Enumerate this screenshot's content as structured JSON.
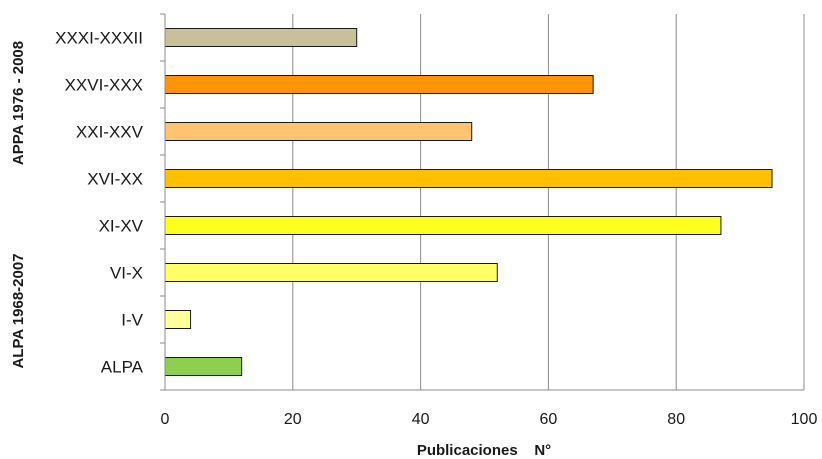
{
  "chart_data": {
    "type": "bar",
    "orientation": "horizontal",
    "categories": [
      "XXXI-XXXII",
      "XXVI-XXX",
      "XXI-XXV",
      "XVI-XX",
      "XI-XV",
      "VI-X",
      "I-V",
      "ALPA"
    ],
    "values": [
      30,
      67,
      48,
      95,
      87,
      52,
      4,
      12
    ],
    "bar_colors": [
      "#c9bf9a",
      "#ff9408",
      "#ffc56e",
      "#ffc000",
      "#ffff1e",
      "#ffff66",
      "#ffff99",
      "#8fcf4f"
    ],
    "xlabel": "Publicaciones    N°",
    "xlim": [
      0,
      100
    ],
    "xticks": [
      0,
      20,
      40,
      60,
      80,
      100
    ],
    "group_labels": [
      "APPA 1976 - 2008",
      "ALPA 1968-2007"
    ],
    "grid": "vertical",
    "legend": "none"
  }
}
